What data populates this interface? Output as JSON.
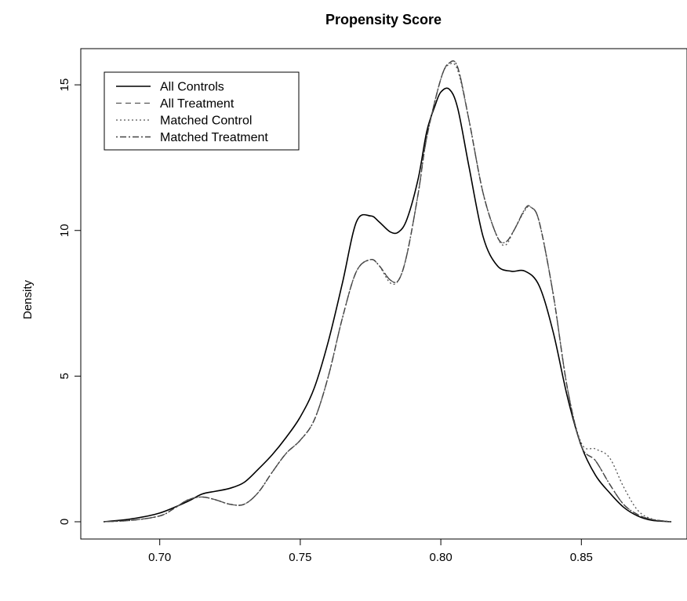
{
  "chart_data": {
    "type": "line",
    "title": "Propensity Score",
    "xlabel": "",
    "ylabel": "Density",
    "xlim": [
      0.68,
      0.882
    ],
    "ylim": [
      0,
      16.7
    ],
    "xticks": [
      "0.70",
      "0.75",
      "0.80",
      "0.85"
    ],
    "xtick_values": [
      0.7,
      0.75,
      0.8,
      0.85
    ],
    "yticks": [
      "0",
      "5",
      "10",
      "15"
    ],
    "ytick_values": [
      0,
      5,
      10,
      15
    ],
    "grid": false,
    "legend_position": "top-left",
    "series": [
      {
        "name": "All Controls",
        "style": "solid",
        "color": "#000000",
        "x": [
          0.68,
          0.69,
          0.7,
          0.71,
          0.715,
          0.72,
          0.725,
          0.73,
          0.735,
          0.74,
          0.745,
          0.75,
          0.755,
          0.76,
          0.765,
          0.77,
          0.775,
          0.778,
          0.782,
          0.785,
          0.788,
          0.792,
          0.795,
          0.798,
          0.8,
          0.803,
          0.806,
          0.81,
          0.815,
          0.82,
          0.825,
          0.83,
          0.835,
          0.84,
          0.845,
          0.85,
          0.855,
          0.86,
          0.865,
          0.87,
          0.875,
          0.882
        ],
        "y": [
          0.0,
          0.1,
          0.3,
          0.7,
          0.95,
          1.05,
          1.15,
          1.35,
          1.8,
          2.3,
          2.9,
          3.6,
          4.6,
          6.2,
          8.2,
          10.3,
          10.5,
          10.3,
          9.95,
          9.95,
          10.4,
          11.8,
          13.4,
          14.3,
          14.75,
          14.85,
          14.2,
          12.2,
          9.8,
          8.8,
          8.6,
          8.6,
          8.1,
          6.5,
          4.3,
          2.6,
          1.6,
          1.0,
          0.5,
          0.2,
          0.05,
          0.0
        ]
      },
      {
        "name": "All Treatment",
        "style": "dashed",
        "color": "#555555",
        "x": [
          0.68,
          0.69,
          0.7,
          0.705,
          0.71,
          0.715,
          0.72,
          0.725,
          0.73,
          0.735,
          0.74,
          0.745,
          0.75,
          0.755,
          0.76,
          0.765,
          0.77,
          0.775,
          0.778,
          0.782,
          0.785,
          0.788,
          0.792,
          0.795,
          0.8,
          0.803,
          0.806,
          0.81,
          0.815,
          0.82,
          0.823,
          0.826,
          0.83,
          0.832,
          0.835,
          0.84,
          0.845,
          0.85,
          0.855,
          0.86,
          0.865,
          0.87,
          0.875,
          0.882
        ],
        "y": [
          0.0,
          0.05,
          0.2,
          0.45,
          0.75,
          0.85,
          0.75,
          0.6,
          0.6,
          1.0,
          1.7,
          2.35,
          2.8,
          3.5,
          5.0,
          7.0,
          8.6,
          9.0,
          8.8,
          8.3,
          8.3,
          9.2,
          11.3,
          13.2,
          15.2,
          15.75,
          15.6,
          13.8,
          11.3,
          9.8,
          9.6,
          10.0,
          10.75,
          10.8,
          10.3,
          7.8,
          4.6,
          2.6,
          2.1,
          1.3,
          0.6,
          0.25,
          0.08,
          0.0
        ]
      },
      {
        "name": "Matched Control",
        "style": "dotted",
        "color": "#555555",
        "x": [
          0.68,
          0.69,
          0.7,
          0.705,
          0.71,
          0.715,
          0.72,
          0.725,
          0.73,
          0.735,
          0.74,
          0.745,
          0.75,
          0.755,
          0.76,
          0.765,
          0.77,
          0.775,
          0.778,
          0.782,
          0.785,
          0.788,
          0.792,
          0.795,
          0.8,
          0.803,
          0.806,
          0.81,
          0.815,
          0.82,
          0.823,
          0.826,
          0.83,
          0.832,
          0.835,
          0.84,
          0.845,
          0.85,
          0.855,
          0.86,
          0.865,
          0.87,
          0.875,
          0.882
        ],
        "y": [
          0.0,
          0.05,
          0.2,
          0.45,
          0.75,
          0.85,
          0.75,
          0.6,
          0.6,
          1.0,
          1.7,
          2.35,
          2.8,
          3.5,
          5.0,
          7.0,
          8.6,
          9.0,
          8.8,
          8.2,
          8.3,
          9.2,
          11.3,
          13.2,
          15.2,
          15.7,
          15.5,
          13.8,
          11.3,
          9.8,
          9.5,
          10.0,
          10.7,
          10.8,
          10.3,
          7.8,
          4.6,
          2.7,
          2.5,
          2.2,
          1.2,
          0.4,
          0.1,
          0.0
        ]
      },
      {
        "name": "Matched Treatment",
        "style": "dotdash",
        "color": "#444444",
        "x": [
          0.68,
          0.69,
          0.7,
          0.705,
          0.71,
          0.715,
          0.72,
          0.725,
          0.73,
          0.735,
          0.74,
          0.745,
          0.75,
          0.755,
          0.76,
          0.765,
          0.77,
          0.775,
          0.778,
          0.782,
          0.785,
          0.788,
          0.792,
          0.795,
          0.8,
          0.803,
          0.806,
          0.81,
          0.815,
          0.82,
          0.823,
          0.826,
          0.83,
          0.832,
          0.835,
          0.84,
          0.845,
          0.85,
          0.855,
          0.86,
          0.865,
          0.87,
          0.875,
          0.882
        ],
        "y": [
          0.0,
          0.05,
          0.2,
          0.45,
          0.75,
          0.85,
          0.75,
          0.6,
          0.6,
          1.0,
          1.7,
          2.35,
          2.8,
          3.5,
          5.0,
          7.0,
          8.6,
          9.0,
          8.8,
          8.3,
          8.3,
          9.2,
          11.3,
          13.2,
          15.2,
          15.75,
          15.6,
          13.8,
          11.3,
          9.8,
          9.6,
          10.0,
          10.75,
          10.8,
          10.3,
          7.8,
          4.6,
          2.6,
          2.1,
          1.3,
          0.6,
          0.25,
          0.08,
          0.0
        ]
      }
    ]
  }
}
